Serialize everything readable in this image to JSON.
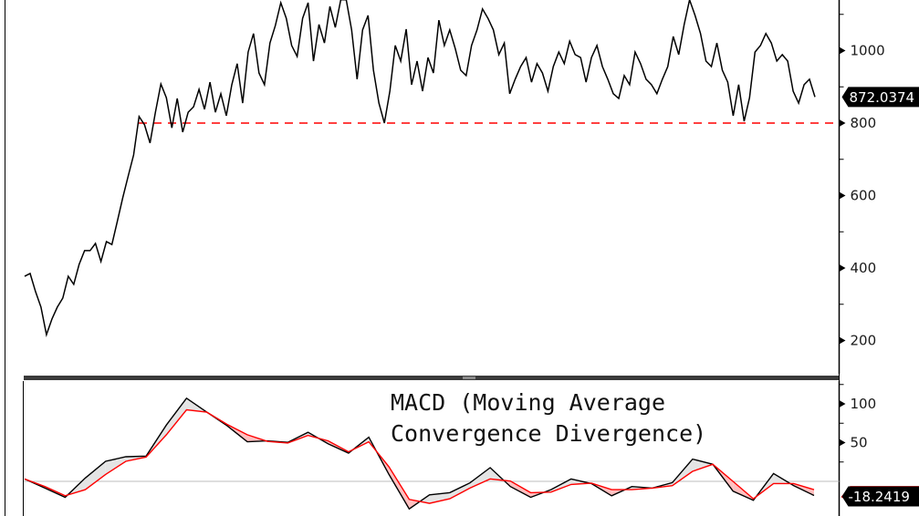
{
  "chart_data": [
    {
      "type": "line",
      "title": "",
      "xlabel": "",
      "ylabel": "",
      "ylim": [
        150,
        1140
      ],
      "yticks": [
        200,
        400,
        600,
        800,
        1000
      ],
      "ytick_labels": [
        "200",
        "400",
        "600",
        "800",
        "1000"
      ],
      "grid": false,
      "line_color": "#000000",
      "support_line": {
        "value": 800,
        "color": "#ff0000",
        "style": "dashed"
      },
      "last_value_label": "872.0374",
      "values": [
        377,
        385,
        335,
        292,
        216,
        259,
        292,
        317,
        377,
        355,
        410,
        448,
        448,
        468,
        418,
        473,
        465,
        528,
        594,
        654,
        712,
        818,
        795,
        745,
        830,
        908,
        870,
        787,
        868,
        775,
        830,
        845,
        893,
        838,
        913,
        830,
        881,
        820,
        906,
        964,
        855,
        996,
        1047,
        938,
        906,
        1021,
        1069,
        1132,
        1089,
        1014,
        984,
        1089,
        1132,
        971,
        1072,
        1021,
        1122,
        1064,
        1140,
        1140,
        1057,
        921,
        1057,
        1097,
        946,
        855,
        800,
        888,
        1014,
        971,
        1059,
        906,
        971,
        888,
        981,
        938,
        1084,
        1014,
        1057,
        1006,
        946,
        931,
        1014,
        1057,
        1115,
        1089,
        1057,
        989,
        1021,
        881,
        921,
        956,
        981,
        913,
        964,
        938,
        888,
        956,
        996,
        964,
        1026,
        989,
        981,
        913,
        981,
        1014,
        956,
        921,
        881,
        868,
        931,
        906,
        996,
        964,
        921,
        906,
        881,
        921,
        956,
        1039,
        989,
        1072,
        1140,
        1097,
        1047,
        971,
        956,
        1021,
        946,
        913,
        820,
        906,
        805,
        870,
        996,
        1014,
        1047,
        1021,
        971,
        989,
        971,
        888,
        855,
        906,
        921,
        872.0374
      ]
    },
    {
      "type": "line",
      "title": "MACD (Moving Average\nConvergence Divergence)",
      "title_lines": [
        "MACD (Moving Average",
        "Convergence Divergence)"
      ],
      "xlabel": "",
      "ylabel": "",
      "ylim": [
        -45,
        125
      ],
      "yticks": [
        50,
        100
      ],
      "ytick_labels": [
        "50",
        "100"
      ],
      "zero_line": true,
      "series": [
        {
          "role": "macd",
          "color": "#000000",
          "values": [
            3.1,
            -8.7,
            -20.6,
            4.3,
            25.9,
            31.8,
            32.6,
            72.7,
            107.3,
            89.3,
            71.9,
            51.1,
            52.2,
            50.3,
            63.3,
            48.3,
            36.5,
            57,
            9,
            -35.5,
            -17.4,
            -14.6,
            -2,
            17.6,
            -6.7,
            -20.6,
            -10.7,
            3.1,
            -2.8,
            -18.6,
            -6.7,
            -8.7,
            -1.6,
            28.7,
            22,
            -12.7,
            -24.5,
            10.1,
            -5.5,
            -18.2419
          ]
        },
        {
          "role": "signal",
          "color": "#ff0000",
          "values": [
            3.1,
            -6.7,
            -18.6,
            -10.7,
            9,
            25.9,
            31.4,
            60.1,
            92.4,
            89.3,
            73.5,
            60.1,
            51.5,
            49.5,
            59.3,
            52.2,
            38.1,
            51.1,
            18.8,
            -23.3,
            -28.4,
            -22.5,
            -8.7,
            3.1,
            0.3,
            -14.6,
            -13.9,
            -4,
            -2.4,
            -10.7,
            -10.7,
            -8.7,
            -5.5,
            12.9,
            22,
            -0.1,
            -22.5,
            -2.8,
            -2.8,
            -10.7
          ]
        }
      ],
      "fill_macd_above_color": "#e4e4e4",
      "fill_macd_below_color": "#ffc0c0",
      "last_value_label": "-18.2419",
      "signal_tag_color": "#ff0000"
    }
  ]
}
